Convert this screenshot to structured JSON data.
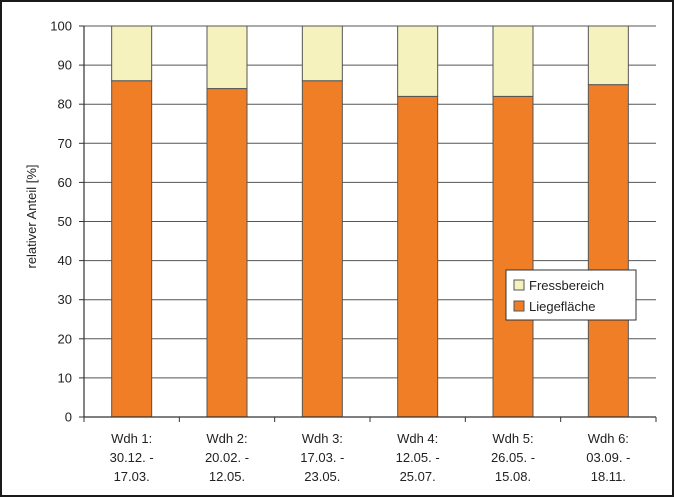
{
  "chart_data": {
    "type": "bar",
    "stacked": true,
    "categories": [
      [
        "Wdh 1:",
        "30.12. -",
        "17.03."
      ],
      [
        "Wdh 2:",
        "20.02. -",
        "12.05."
      ],
      [
        "Wdh 3:",
        "17.03. -",
        "23.05."
      ],
      [
        "Wdh 4:",
        "12.05. -",
        "25.07."
      ],
      [
        "Wdh 5:",
        "26.05. -",
        "15.08."
      ],
      [
        "Wdh 6:",
        "03.09. -",
        "18.11."
      ]
    ],
    "series": [
      {
        "name": "Liegefläche",
        "color": "#ef7e26",
        "values": [
          86,
          84,
          86,
          82,
          82,
          85
        ]
      },
      {
        "name": "Fressbereich",
        "color": "#f6f2bd",
        "values": [
          14,
          16,
          14,
          18,
          18,
          15
        ]
      }
    ],
    "ylabel": "relativer Anteil [%]",
    "yticks": [
      0,
      10,
      20,
      30,
      40,
      50,
      60,
      70,
      80,
      90,
      100
    ],
    "ylim": [
      0,
      100
    ],
    "grid": true,
    "legend": {
      "placement": "right",
      "order": [
        "Fressbereich",
        "Liegefläche"
      ]
    }
  }
}
